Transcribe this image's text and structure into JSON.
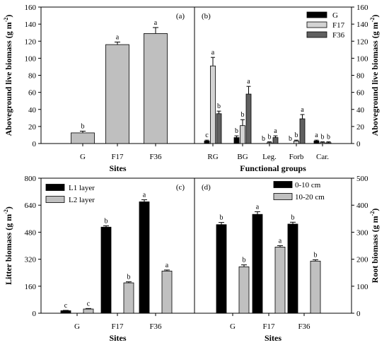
{
  "chart_data": [
    {
      "type": "bar",
      "panel_label": "(a)",
      "categories": [
        "G",
        "F17",
        "F36"
      ],
      "xlabel": "Sites",
      "ylabel": "Aboveground live biomass (g m",
      "ylabel_sup": "-2",
      "ylabel_close": ")",
      "ylim": [
        0,
        160
      ],
      "yticks": [
        0,
        20,
        40,
        60,
        80,
        100,
        120,
        140,
        160
      ],
      "yaxis_side": "left",
      "series": [
        {
          "values": [
            12.5,
            116,
            129
          ],
          "errors": [
            2,
            3,
            7
          ],
          "letters": [
            "b",
            "a",
            "a"
          ],
          "color": "#bfbfbf"
        }
      ]
    },
    {
      "type": "bar",
      "panel_label": "(b)",
      "categories": [
        "RG",
        "BG",
        "Leg.",
        "Forb",
        "Car."
      ],
      "xlabel": "Functional groups",
      "ylabel": "Aboveground live biomass (g m",
      "ylabel_sup": "-2",
      "ylabel_close": ")",
      "ylim": [
        0,
        160
      ],
      "yticks": [
        0,
        20,
        40,
        60,
        80,
        100,
        120,
        140,
        160
      ],
      "yaxis_side": "right",
      "legend_position": "top-right",
      "series": [
        {
          "name": "G",
          "values": [
            3,
            7,
            0,
            0,
            3
          ],
          "errors": [
            1,
            2,
            0,
            0,
            1
          ],
          "letters": [
            "c",
            "b",
            "b",
            "b",
            "a"
          ],
          "color": "#000000"
        },
        {
          "name": "F17",
          "values": [
            91,
            21,
            1,
            3,
            1
          ],
          "errors": [
            10,
            7,
            1,
            1,
            1
          ],
          "letters": [
            "a",
            "b",
            "b",
            "b",
            "b"
          ],
          "color": "#d3d3d3"
        },
        {
          "name": "F36",
          "values": [
            35,
            58,
            7,
            29,
            1
          ],
          "errors": [
            3,
            9,
            2,
            5,
            1
          ],
          "letters": [
            "b",
            "a",
            "a",
            "a",
            "b"
          ],
          "color": "#606060"
        }
      ]
    },
    {
      "type": "bar",
      "panel_label": "(c)",
      "categories": [
        "G",
        "F17",
        "F36"
      ],
      "xlabel": "Sites",
      "ylabel": "Litter biomass (g m",
      "ylabel_sup": "-2",
      "ylabel_close": ")",
      "ylim": [
        0,
        800
      ],
      "yticks": [
        0,
        160,
        320,
        480,
        640,
        800
      ],
      "yaxis_side": "left",
      "legend_position": "top-left",
      "series": [
        {
          "name": "L1 layer",
          "values": [
            15,
            510,
            660
          ],
          "errors": [
            2,
            8,
            12
          ],
          "letters": [
            "c",
            "b",
            "a"
          ],
          "color": "#000000"
        },
        {
          "name": "L2 layer",
          "values": [
            25,
            180,
            250
          ],
          "errors": [
            3,
            6,
            6
          ],
          "letters": [
            "c",
            "b",
            "a"
          ],
          "color": "#c0c0c0"
        }
      ]
    },
    {
      "type": "bar",
      "panel_label": "(d)",
      "categories": [
        "G",
        "F17",
        "F36"
      ],
      "xlabel": "Sites",
      "ylabel": "Root biomass (g m",
      "ylabel_sup": "-2",
      "ylabel_close": ")",
      "ylim": [
        0,
        500
      ],
      "yticks": [
        0,
        100,
        200,
        300,
        400,
        500
      ],
      "yaxis_side": "right",
      "legend_position": "top-right",
      "series": [
        {
          "name": "0-10 cm",
          "values": [
            328,
            366,
            330
          ],
          "errors": [
            8,
            10,
            7
          ],
          "letters": [
            "b",
            "a",
            "b"
          ],
          "color": "#000000"
        },
        {
          "name": "10-20 cm",
          "values": [
            172,
            245,
            193
          ],
          "errors": [
            7,
            5,
            5
          ],
          "letters": [
            "b",
            "a",
            "b"
          ],
          "color": "#c0c0c0"
        }
      ]
    }
  ]
}
